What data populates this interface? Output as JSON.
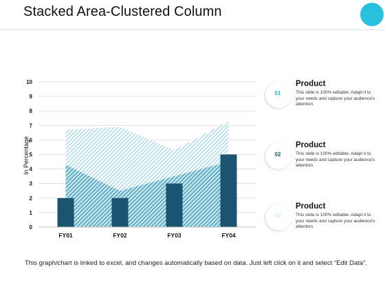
{
  "slide": {
    "title": "Stacked Area-Clustered  Column",
    "footer": "This graph/chart is linked to excel, and changes automatically based on data. Just left click on it and select “Edit Data”."
  },
  "colors": {
    "accent_circle": "#29c0e0",
    "column": "#1a5470",
    "area_front": "#2f8fa8",
    "area_back": "#8fcfe0",
    "legend_num_1": "#29b6d8",
    "legend_num_2": "#1a5470",
    "legend_num_3": "#cfe6ee"
  },
  "legend": [
    {
      "number": "01",
      "heading": "Product",
      "text": "This slide is 100% editable. Adapt it to your needs and capture your audience's attention."
    },
    {
      "number": "02",
      "heading": "Product",
      "text": "This slide is 100% editable. Adapt it to your needs and capture your audience's attention."
    },
    {
      "number": "03",
      "heading": "Product",
      "text": "This slide is 100% editable. Adapt it to your needs and capture your audience's attention."
    }
  ],
  "chart_data": {
    "type": "bar",
    "title": "",
    "xlabel": "",
    "ylabel": "In Percentage",
    "categories": [
      "FY01",
      "FY02",
      "FY03",
      "FY04"
    ],
    "ylim": [
      0,
      10
    ],
    "yticks": [
      0,
      1,
      2,
      3,
      4,
      5,
      6,
      7,
      8,
      9,
      10
    ],
    "grid": true,
    "columns": [
      2,
      2,
      3,
      5
    ],
    "area_series": [
      {
        "values": [
          4.3,
          2.5,
          3.5,
          4.5
        ]
      },
      {
        "values": [
          2.4,
          4.4,
          1.8,
          2.8
        ]
      }
    ]
  }
}
